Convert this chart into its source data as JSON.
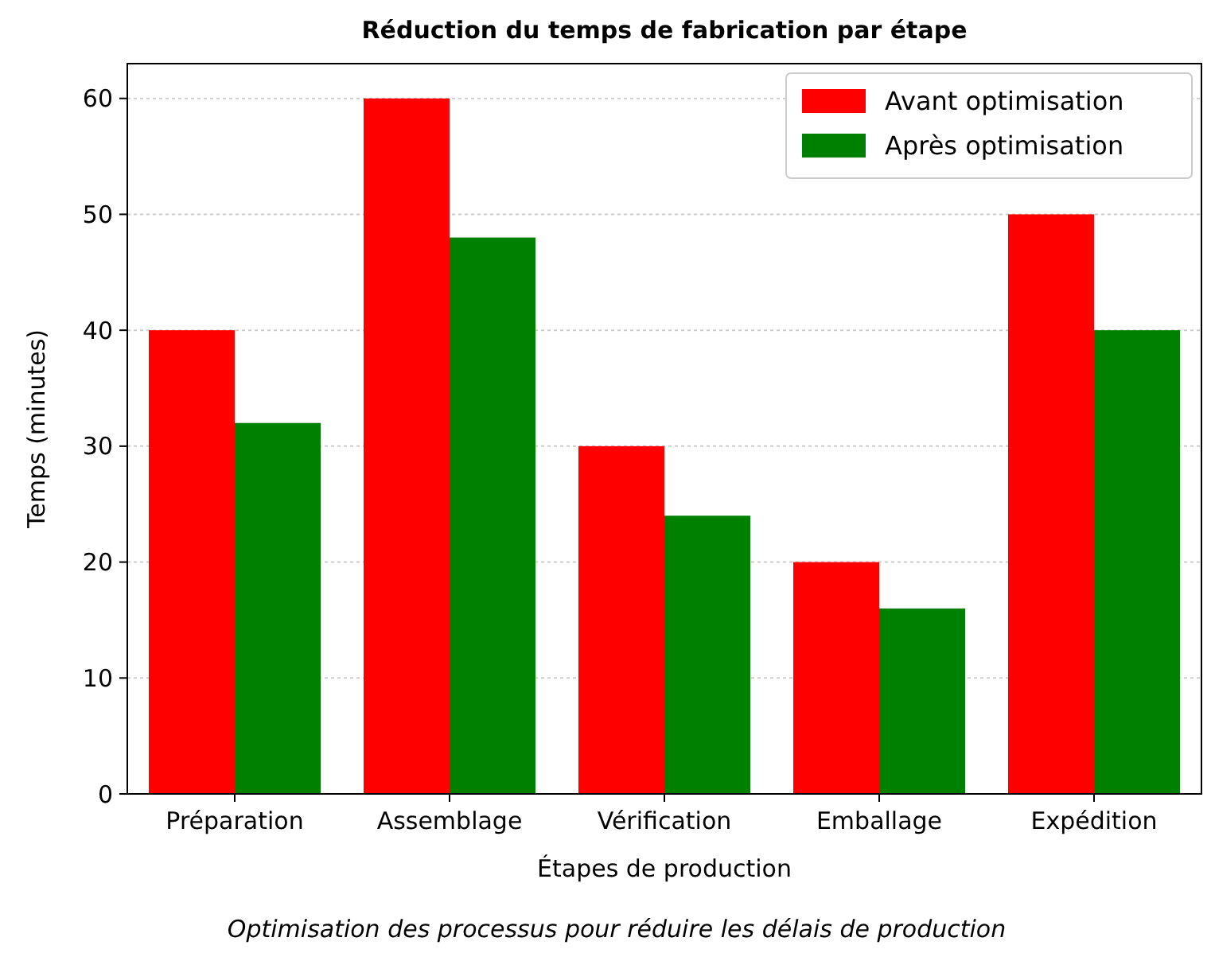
{
  "chart_data": {
    "type": "bar",
    "title": "Réduction du temps de fabrication par étape",
    "xlabel": "Étapes de production",
    "ylabel": "Temps (minutes)",
    "categories": [
      "Préparation",
      "Assemblage",
      "Vérification",
      "Emballage",
      "Expédition"
    ],
    "series": [
      {
        "name": "Avant optimisation",
        "color": "#ff0000",
        "values": [
          40,
          60,
          30,
          20,
          50
        ]
      },
      {
        "name": "Après optimisation",
        "color": "#008000",
        "values": [
          32,
          48,
          24,
          16,
          40
        ]
      }
    ],
    "ylim": [
      0,
      63
    ],
    "yticks": [
      0,
      10,
      20,
      30,
      40,
      50,
      60
    ],
    "grid": "y",
    "legend": "top right",
    "annotations": [
      "Optimisation des processus pour réduire les délais de production"
    ]
  }
}
